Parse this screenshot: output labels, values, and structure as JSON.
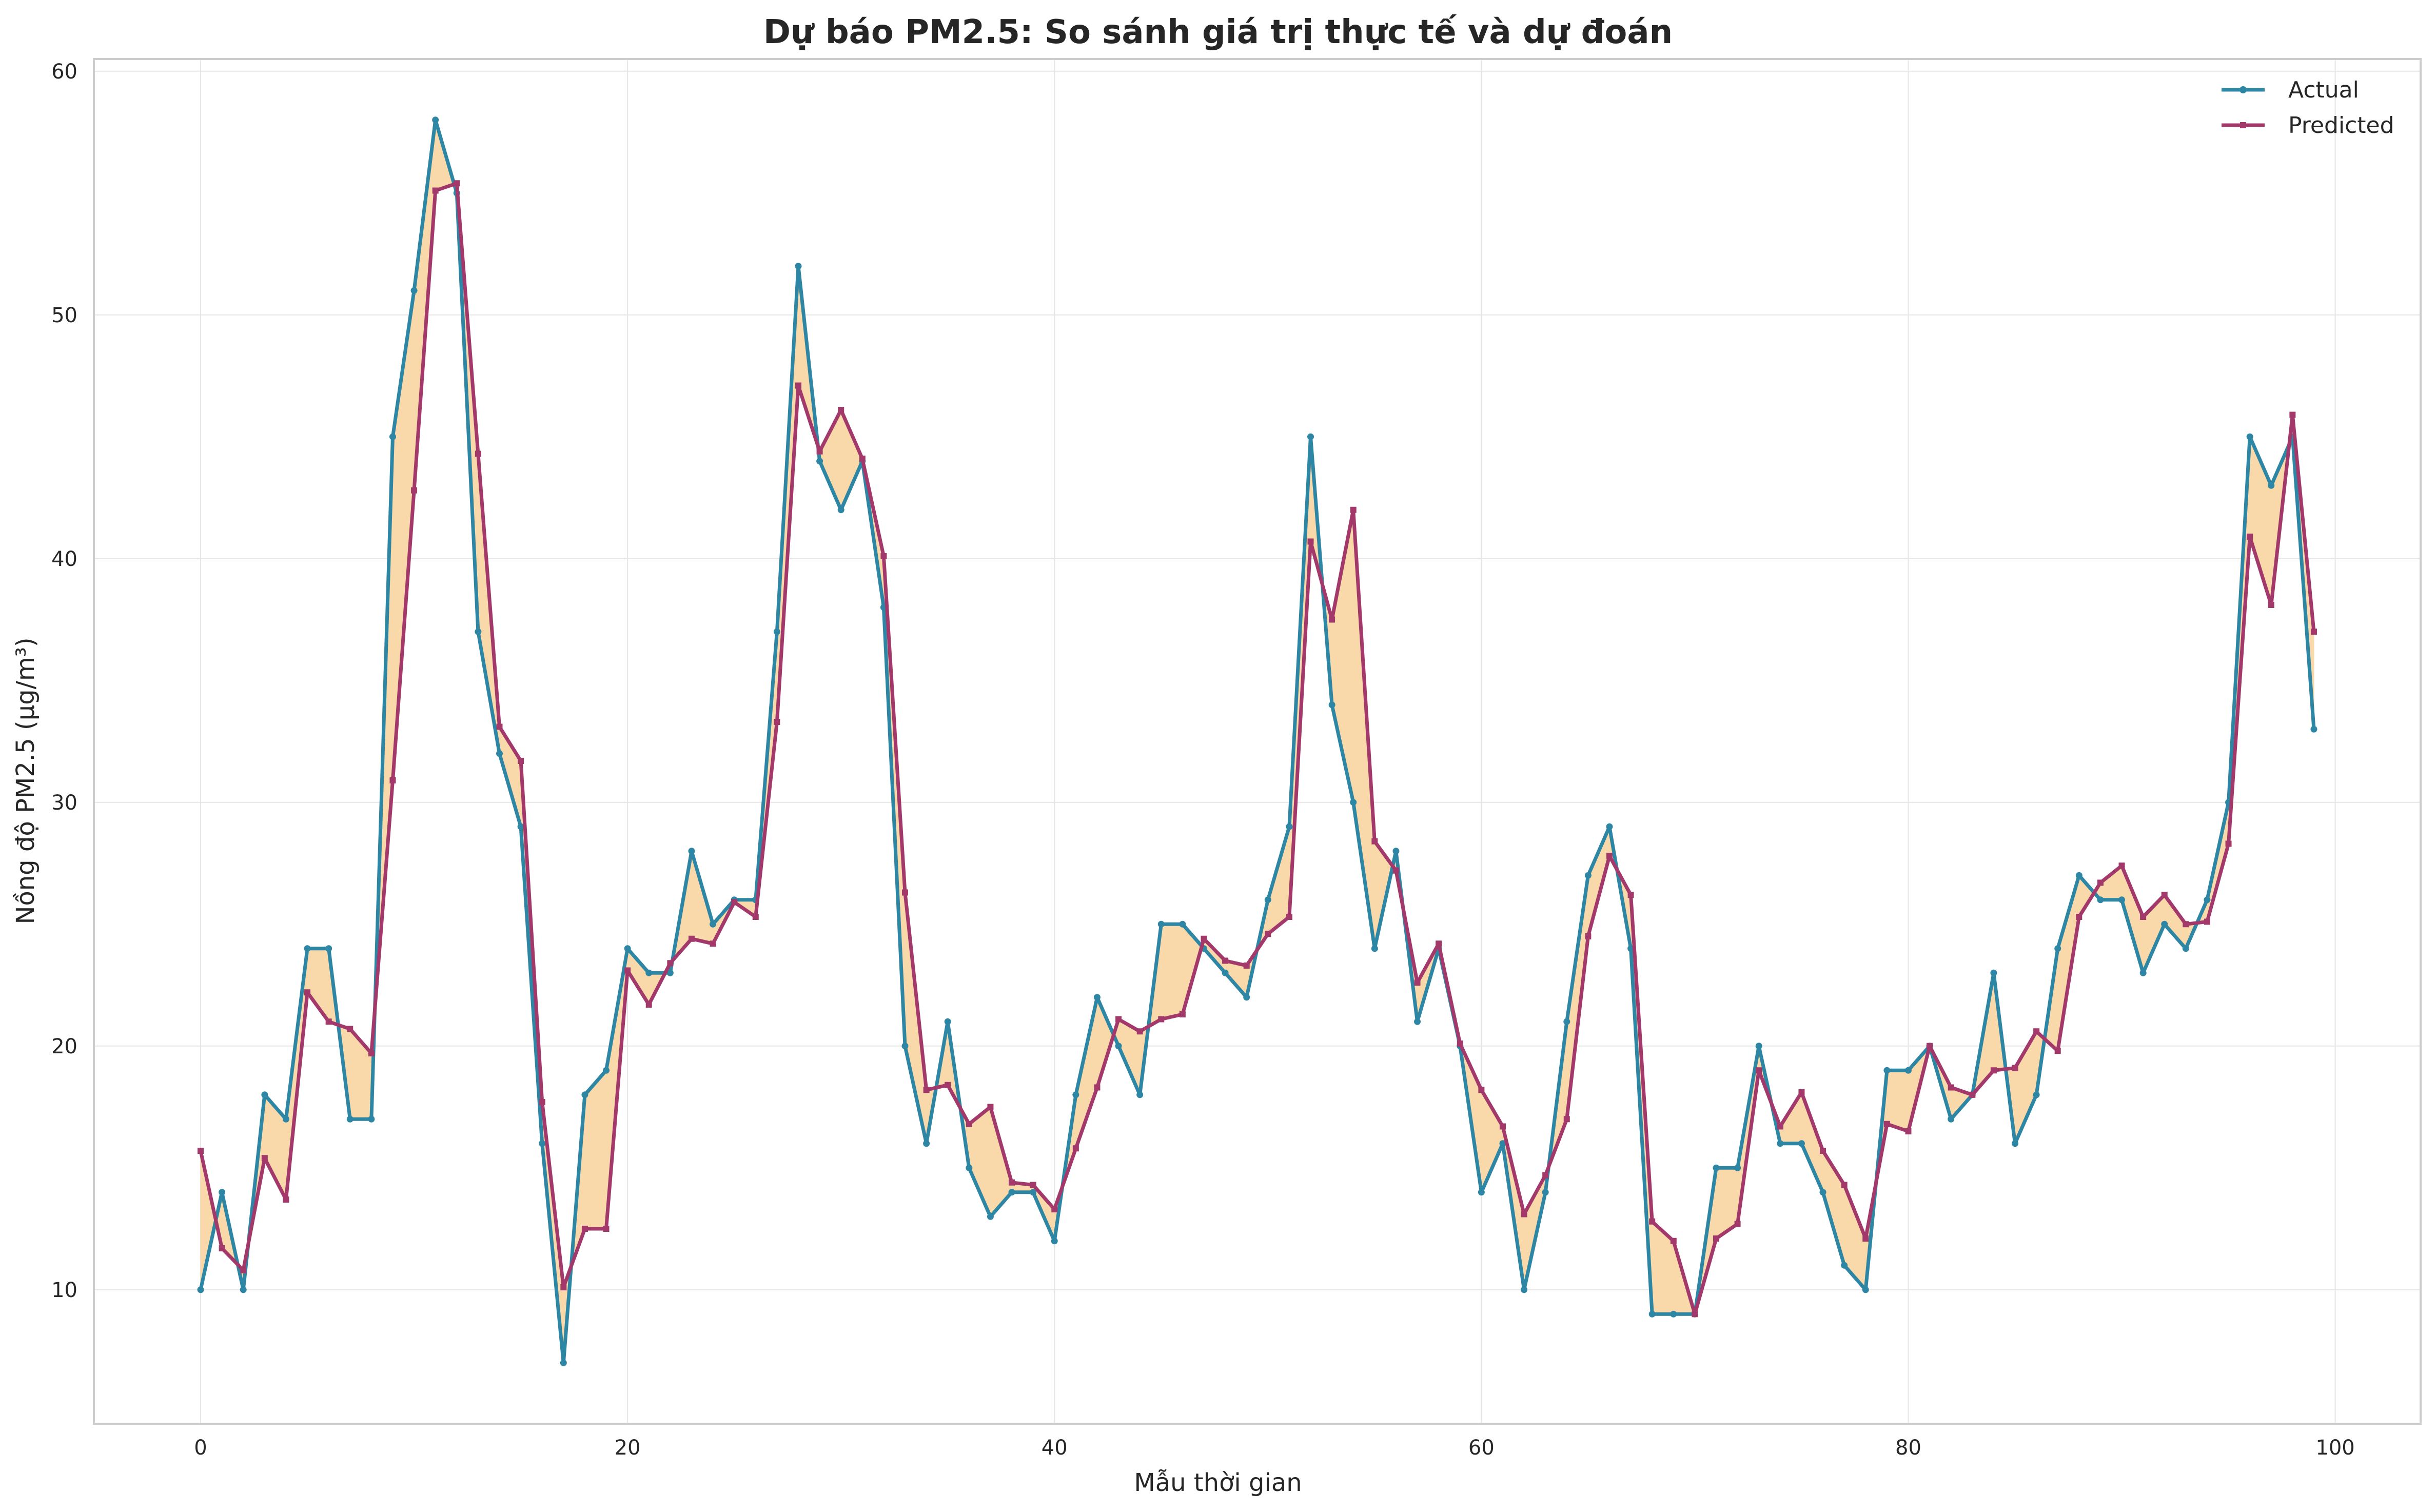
{
  "chart_data": {
    "type": "line",
    "title": "Dự báo PM2.5: So sánh giá trị thực tế và dự đoán",
    "xlabel": "Mẫu thời gian",
    "ylabel": "Nồng độ PM2.5 (µg/m³)",
    "xlim": [
      -5,
      104
    ],
    "ylim": [
      4.5,
      60.5
    ],
    "xticks": [
      0,
      20,
      40,
      60,
      80,
      100
    ],
    "yticks": [
      10,
      20,
      30,
      40,
      50,
      60
    ],
    "grid": true,
    "legend_position": "top-right",
    "fill_between": {
      "color": "#f9d9a9",
      "description": "area between Actual and Predicted"
    },
    "x": [
      0,
      1,
      2,
      3,
      4,
      5,
      6,
      7,
      8,
      9,
      10,
      11,
      12,
      13,
      14,
      15,
      16,
      17,
      18,
      19,
      20,
      21,
      22,
      23,
      24,
      25,
      26,
      27,
      28,
      29,
      30,
      31,
      32,
      33,
      34,
      35,
      36,
      37,
      38,
      39,
      40,
      41,
      42,
      43,
      44,
      45,
      46,
      47,
      48,
      49,
      50,
      51,
      52,
      53,
      54,
      55,
      56,
      57,
      58,
      59,
      60,
      61,
      62,
      63,
      64,
      65,
      66,
      67,
      68,
      69,
      70,
      71,
      72,
      73,
      74,
      75,
      76,
      77,
      78,
      79,
      80,
      81,
      82,
      83,
      84,
      85,
      86,
      87,
      88,
      89,
      90,
      91,
      92,
      93,
      94,
      95,
      96,
      97,
      98,
      99
    ],
    "series": [
      {
        "name": "Actual",
        "color": "#2e86a5",
        "marker": "circle",
        "values": [
          10,
          14,
          10,
          18,
          17,
          24,
          24,
          17,
          17,
          45,
          51,
          58,
          55,
          37,
          32,
          29,
          16,
          7,
          18,
          19,
          24,
          23,
          23,
          28,
          25,
          26,
          26,
          37,
          52,
          44,
          42,
          44,
          38,
          20,
          16,
          21,
          15,
          13,
          14,
          14,
          12,
          18,
          22,
          20,
          18,
          25,
          25,
          24,
          23,
          22,
          26,
          29,
          45,
          34,
          30,
          24,
          28,
          21,
          24,
          20,
          14,
          16,
          10,
          14,
          21,
          27,
          29,
          24,
          9,
          9,
          9,
          15,
          15,
          20,
          16,
          16,
          14,
          11,
          10,
          19,
          19,
          20,
          17,
          18,
          23,
          16,
          18,
          24,
          27,
          26,
          26,
          23,
          25,
          24,
          26,
          30,
          45,
          43,
          45,
          33
        ]
      },
      {
        "name": "Predicted",
        "color": "#a3386b",
        "marker": "square",
        "values": [
          15.7,
          11.7,
          10.8,
          15.4,
          13.7,
          22.2,
          21.0,
          20.7,
          19.7,
          30.9,
          42.8,
          55.1,
          55.4,
          44.3,
          33.1,
          31.7,
          17.7,
          10.1,
          12.5,
          12.5,
          23.1,
          21.7,
          23.4,
          24.4,
          24.2,
          25.9,
          25.3,
          33.3,
          47.1,
          44.4,
          46.1,
          44.1,
          40.1,
          26.3,
          18.2,
          18.4,
          16.8,
          17.5,
          14.4,
          14.3,
          13.3,
          15.8,
          18.3,
          21.1,
          20.6,
          21.1,
          21.3,
          24.4,
          23.5,
          23.3,
          24.6,
          25.3,
          40.7,
          37.5,
          42.0,
          28.4,
          27.2,
          22.6,
          24.2,
          20.1,
          18.2,
          16.7,
          13.1,
          14.7,
          17.0,
          24.5,
          27.8,
          26.2,
          12.8,
          12.0,
          9.0,
          12.1,
          12.7,
          19.0,
          16.7,
          18.1,
          15.7,
          14.3,
          12.1,
          16.8,
          16.5,
          20.0,
          18.3,
          18.0,
          19.0,
          19.1,
          20.6,
          19.8,
          25.3,
          26.7,
          27.4,
          25.3,
          26.2,
          25.0,
          25.1,
          28.3,
          40.9,
          38.1,
          45.9,
          37.0
        ]
      }
    ]
  }
}
